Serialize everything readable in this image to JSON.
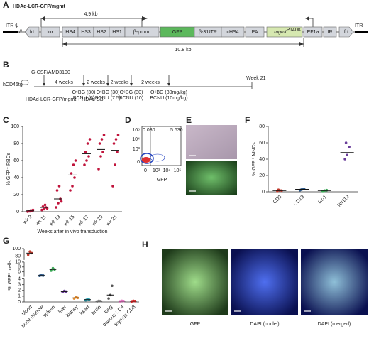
{
  "panels": {
    "A": {
      "label": "A",
      "title": "HDAd-LCR-GFP/mgmt",
      "itr_left": "ITR ψ",
      "itr_right": "ITR",
      "elements": [
        "frt",
        "lox",
        "HS4",
        "HS3",
        "HS2",
        "HS1",
        "β-prom.",
        "GFP",
        "β-3'UTR",
        "cHS4",
        "PA",
        "mgmt",
        "EF1a",
        "IR",
        "frt"
      ],
      "mgmt_sup": "P140K",
      "span_short": "4.9 kb",
      "span_long": "10.8 kb"
    },
    "B": {
      "label": "B",
      "mouse": "hCD46tg",
      "mobilization": "G-CSF/AMD3100",
      "injection": "HDAd-LCR-GFP/mgmt + HDAd-SB",
      "intervals": [
        "4 weeks",
        "2 weeks",
        "2 weeks",
        "2 weeks"
      ],
      "end": "Week 21",
      "treatments": [
        [
          "O⁶BG (30)",
          "BCNU (5)"
        ],
        [
          "O⁶BG (30)",
          "BCNU (7.5)"
        ],
        [
          "O⁶BG (30)",
          "BCNU (10)"
        ],
        [
          "O⁶BG (30mg/kg)",
          "BCNU (10mg/kg)"
        ]
      ]
    },
    "D": {
      "label": "D",
      "x_label": "GFP",
      "gate_left": "0.030",
      "gate_right": "5.630",
      "x_ticks": [
        "0",
        "10³",
        "10⁴",
        "10⁵"
      ],
      "y_ticks": [
        "10⁵",
        "10⁴",
        "10³",
        "0"
      ]
    },
    "E": {
      "label": "E"
    },
    "H": {
      "label": "H",
      "captions": [
        "GFP",
        "DAPI (nuclei)",
        "DAPI (merged)"
      ]
    }
  },
  "chart_data": [
    {
      "type": "dot",
      "label": "C",
      "ylabel": "% GFP⁺ RBCs",
      "xlabel": "Weeks after in vivo transduction",
      "categories": [
        "wk 9",
        "wk 11",
        "wk 13",
        "wk 15",
        "wk 17",
        "wk 19",
        "wk 21"
      ],
      "points": [
        [
          0,
          0.5,
          1,
          1,
          1.5,
          2
        ],
        [
          2,
          3,
          5,
          6,
          8,
          4
        ],
        [
          5,
          10,
          15,
          25,
          30,
          12
        ],
        [
          25,
          30,
          40,
          45,
          55,
          60
        ],
        [
          55,
          60,
          65,
          70,
          80,
          85
        ],
        [
          50,
          65,
          70,
          80,
          85,
          90
        ],
        [
          30,
          55,
          70,
          80,
          85,
          90
        ]
      ],
      "medians": [
        1,
        5,
        15,
        43,
        68,
        73,
        72
      ],
      "colors": [
        "#c0143c",
        "#c0143c",
        "#c0143c",
        "#c0143c",
        "#c0143c",
        "#c0143c",
        "#c0143c"
      ],
      "ylim": [
        0,
        100
      ],
      "yticks": [
        0,
        20,
        40,
        60,
        80,
        100
      ]
    },
    {
      "type": "dot",
      "label": "F",
      "ylabel": "% GFP⁺ MNCs",
      "categories": [
        "CD3",
        "CD19",
        "Gr-1",
        "Ter119"
      ],
      "points": [
        [
          1,
          2,
          1.5,
          2.5
        ],
        [
          2,
          3,
          3.5,
          2.5
        ],
        [
          1,
          1.5,
          2,
          1
        ],
        [
          40,
          45,
          55,
          60
        ]
      ],
      "medians": [
        1.5,
        3,
        1.5,
        48
      ],
      "colors": [
        "#c0392b",
        "#2e5a8a",
        "#3aa655",
        "#6a3d9a"
      ],
      "ylim": [
        0,
        80
      ],
      "yticks": [
        0,
        20,
        40,
        60,
        80
      ]
    },
    {
      "type": "dot",
      "label": "G",
      "ylabel": "% GFP⁺ cells",
      "categories": [
        "blood",
        "bone marrow",
        "spleen",
        "liver",
        "kidney",
        "heart",
        "brain",
        "lung",
        "thymus CD4",
        "thymus CD8"
      ],
      "points": [
        [
          84,
          92,
          88
        ],
        [
          4.4,
          4.6,
          4.5
        ],
        [
          6.5,
          7.5,
          7
        ],
        [
          1.7,
          1.9,
          1.8
        ],
        [
          0.6,
          0.8,
          0.7
        ],
        [
          0.3,
          0.5,
          0.4
        ],
        [
          0.1,
          0.2,
          0.15
        ],
        [
          0.6,
          1.2,
          2.8
        ],
        [
          0.1,
          0.2,
          0.15
        ],
        [
          0.1,
          0.2,
          0.15
        ]
      ],
      "medians": [
        88,
        4.5,
        7,
        1.8,
        0.7,
        0.4,
        0.15,
        1.2,
        0.15,
        0.15
      ],
      "colors": [
        "#c0392b",
        "#2e5a8a",
        "#3aa655",
        "#6a3d9a",
        "#e08a2e",
        "#2aa1b3",
        "#8a8a8a",
        "#555555",
        "#e377c2",
        "#d62728"
      ],
      "ylim": [
        0,
        100
      ],
      "ysegments": [
        [
          0,
          4
        ],
        [
          4,
          10
        ],
        [
          70,
          100
        ]
      ],
      "yticks": [
        0,
        1,
        2,
        3,
        4,
        6,
        8,
        10,
        80,
        100
      ]
    }
  ]
}
